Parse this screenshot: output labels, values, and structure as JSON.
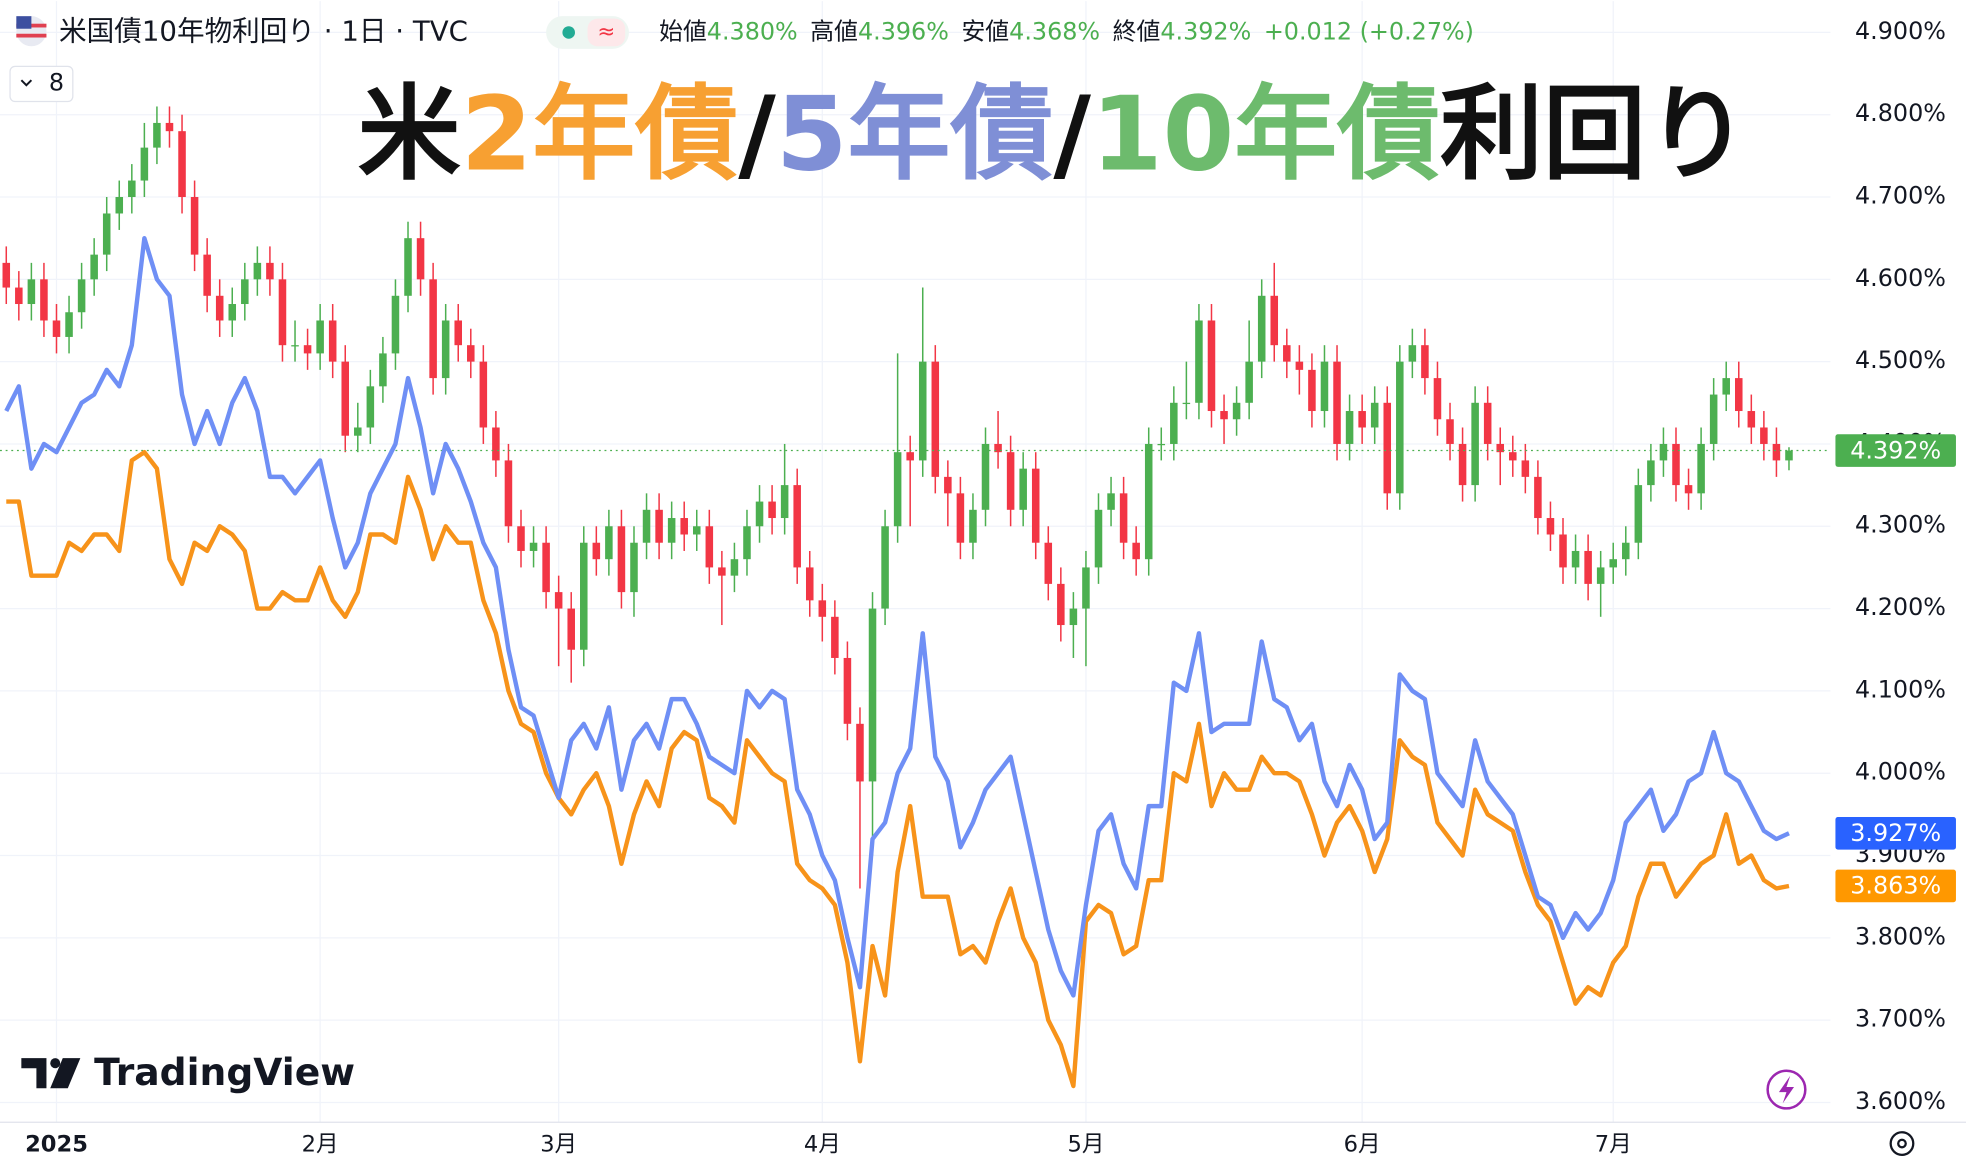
{
  "chart_data": {
    "type": "candlestick",
    "header": {
      "symbol": "米国債10年物利回り · 1日 · TVC",
      "indicator": "8",
      "ohlc": [
        {
          "label": "始値",
          "value": "4.380%"
        },
        {
          "label": "高値",
          "value": "4.396%"
        },
        {
          "label": "安値",
          "value": "4.368%"
        },
        {
          "label": "終値",
          "value": "4.392%"
        }
      ],
      "change": "+0.012 (+0.27%)",
      "brand": "TradingView"
    },
    "title_parts": [
      {
        "text": "米",
        "color": "#111111"
      },
      {
        "text": "2年債",
        "color": "#f7a032"
      },
      {
        "text": "/",
        "color": "#111111"
      },
      {
        "text": "5年債",
        "color": "#7f8fd6"
      },
      {
        "text": "/",
        "color": "#111111"
      },
      {
        "text": "10年債",
        "color": "#6dbb6d"
      },
      {
        "text": "利回り",
        "color": "#111111"
      }
    ],
    "categories": [
      null,
      null,
      null,
      null,
      null,
      null,
      null,
      null,
      null,
      null,
      null,
      null,
      null,
      null,
      null,
      null,
      null,
      null,
      null,
      null,
      null,
      null,
      null,
      null,
      null,
      null,
      null,
      null,
      null,
      null,
      null,
      null,
      null,
      null,
      null,
      null,
      null,
      null,
      null,
      null,
      null,
      null,
      null,
      null,
      null,
      null,
      null,
      null,
      null,
      null,
      null,
      null,
      null,
      null,
      null,
      null,
      null,
      null,
      null,
      null,
      null,
      null,
      null,
      null,
      null,
      null,
      null,
      null,
      null,
      null,
      null,
      null,
      null,
      null,
      null,
      null,
      null,
      null,
      null,
      null,
      null,
      null,
      null,
      null,
      null,
      null,
      null,
      null,
      null,
      null,
      null,
      null,
      null,
      null,
      null,
      null,
      null,
      null,
      null,
      null,
      null,
      null,
      null,
      null,
      null,
      null,
      null,
      null,
      null,
      null,
      null,
      null,
      null,
      null,
      null,
      null,
      null,
      null,
      null,
      null,
      null,
      null,
      null,
      null,
      null,
      null,
      null,
      null,
      null,
      null,
      null,
      null,
      null,
      null,
      null,
      null,
      null,
      null,
      null,
      null,
      null,
      null,
      null
    ],
    "xticks": [
      {
        "value": 4,
        "label": "2025"
      },
      {
        "value": 25,
        "label": "2月"
      },
      {
        "value": 44,
        "label": "3月"
      },
      {
        "value": 65,
        "label": "4月"
      },
      {
        "value": 86,
        "label": "5月"
      },
      {
        "value": 108,
        "label": "6月"
      },
      {
        "value": 128,
        "label": "7月"
      }
    ],
    "ylim": [
      3.576,
      4.938
    ],
    "yticks": [
      {
        "value": 4.9,
        "label": "4.900%"
      },
      {
        "value": 4.8,
        "label": "4.800%"
      },
      {
        "value": 4.7,
        "label": "4.700%"
      },
      {
        "value": 4.6,
        "label": "4.600%"
      },
      {
        "value": 4.5,
        "label": "4.500%"
      },
      {
        "value": 4.4,
        "label": "4.400%"
      },
      {
        "value": 4.3,
        "label": "4.300%"
      },
      {
        "value": 4.2,
        "label": "4.200%"
      },
      {
        "value": 4.1,
        "label": "4.100%"
      },
      {
        "value": 4.0,
        "label": "4.000%"
      },
      {
        "value": 3.9,
        "label": "3.900%"
      },
      {
        "value": 3.8,
        "label": "3.800%"
      },
      {
        "value": 3.7,
        "label": "3.700%"
      },
      {
        "value": 3.6,
        "label": "3.600%"
      }
    ],
    "grid": true,
    "candles": {
      "up_color": "#4caf50",
      "down_color": "#f23645",
      "last_label": "4.392%",
      "open": [
        4.62,
        4.59,
        4.57,
        4.6,
        4.55,
        4.53,
        4.56,
        4.6,
        4.63,
        4.68,
        4.7,
        4.72,
        4.76,
        4.79,
        4.78,
        4.7,
        4.63,
        4.58,
        4.55,
        4.57,
        4.6,
        4.62,
        4.6,
        4.52,
        4.52,
        4.51,
        4.55,
        4.5,
        4.41,
        4.42,
        4.47,
        4.51,
        4.58,
        4.65,
        4.6,
        4.48,
        4.55,
        4.52,
        4.5,
        4.42,
        4.38,
        4.3,
        4.27,
        4.28,
        4.22,
        4.2,
        4.15,
        4.28,
        4.26,
        4.3,
        4.22,
        4.28,
        4.32,
        4.28,
        4.31,
        4.29,
        4.3,
        4.25,
        4.24,
        4.26,
        4.3,
        4.33,
        4.31,
        4.35,
        4.25,
        4.21,
        4.19,
        4.14,
        4.06,
        3.99,
        4.2,
        4.3,
        4.39,
        4.38,
        4.5,
        4.36,
        4.34,
        4.28,
        4.32,
        4.4,
        4.39,
        4.32,
        4.37,
        4.28,
        4.23,
        4.18,
        4.2,
        4.25,
        4.32,
        4.34,
        4.28,
        4.26,
        4.4,
        4.4,
        4.45,
        4.45,
        4.55,
        4.44,
        4.43,
        4.45,
        4.5,
        4.58,
        4.52,
        4.5,
        4.49,
        4.44,
        4.5,
        4.4,
        4.44,
        4.42,
        4.45,
        4.34,
        4.5,
        4.52,
        4.48,
        4.43,
        4.4,
        4.35,
        4.45,
        4.4,
        4.39,
        4.38,
        4.36,
        4.31,
        4.29,
        4.25,
        4.27,
        4.23,
        4.25,
        4.26,
        4.28,
        4.35,
        4.38,
        4.4,
        4.35,
        4.34,
        4.4,
        4.46,
        4.48,
        4.44,
        4.42,
        4.4,
        4.38
      ],
      "high": [
        4.64,
        4.61,
        4.62,
        4.62,
        4.57,
        4.58,
        4.62,
        4.65,
        4.7,
        4.72,
        4.74,
        4.79,
        4.81,
        4.81,
        4.8,
        4.72,
        4.65,
        4.6,
        4.59,
        4.62,
        4.64,
        4.64,
        4.62,
        4.55,
        4.54,
        4.57,
        4.57,
        4.52,
        4.45,
        4.49,
        4.53,
        4.6,
        4.67,
        4.67,
        4.62,
        4.57,
        4.57,
        4.54,
        4.52,
        4.44,
        4.4,
        4.32,
        4.3,
        4.3,
        4.24,
        4.22,
        4.3,
        4.3,
        4.32,
        4.32,
        4.3,
        4.34,
        4.34,
        4.33,
        4.33,
        4.32,
        4.32,
        4.27,
        4.28,
        4.32,
        4.35,
        4.35,
        4.4,
        4.37,
        4.27,
        4.23,
        4.21,
        4.16,
        4.08,
        4.22,
        4.32,
        4.51,
        4.41,
        4.59,
        4.52,
        4.38,
        4.36,
        4.34,
        4.42,
        4.44,
        4.41,
        4.39,
        4.39,
        4.3,
        4.25,
        4.22,
        4.27,
        4.34,
        4.36,
        4.36,
        4.3,
        4.42,
        4.42,
        4.47,
        4.5,
        4.57,
        4.57,
        4.46,
        4.47,
        4.55,
        4.6,
        4.62,
        4.54,
        4.52,
        4.51,
        4.52,
        4.52,
        4.46,
        4.46,
        4.47,
        4.47,
        4.52,
        4.54,
        4.54,
        4.5,
        4.45,
        4.42,
        4.47,
        4.47,
        4.42,
        4.41,
        4.4,
        4.38,
        4.33,
        4.31,
        4.29,
        4.29,
        4.27,
        4.28,
        4.3,
        4.37,
        4.4,
        4.42,
        4.42,
        4.37,
        4.42,
        4.48,
        4.5,
        4.5,
        4.46,
        4.44,
        4.42,
        4.396
      ],
      "low": [
        4.57,
        4.55,
        4.55,
        4.53,
        4.51,
        4.51,
        4.54,
        4.58,
        4.61,
        4.66,
        4.68,
        4.7,
        4.74,
        4.76,
        4.68,
        4.61,
        4.56,
        4.53,
        4.53,
        4.55,
        4.58,
        4.58,
        4.5,
        4.5,
        4.49,
        4.49,
        4.48,
        4.39,
        4.39,
        4.4,
        4.45,
        4.49,
        4.56,
        4.58,
        4.46,
        4.46,
        4.5,
        4.48,
        4.4,
        4.36,
        4.28,
        4.25,
        4.25,
        4.2,
        4.13,
        4.11,
        4.13,
        4.24,
        4.24,
        4.2,
        4.19,
        4.26,
        4.26,
        4.26,
        4.27,
        4.27,
        4.23,
        4.18,
        4.22,
        4.24,
        4.28,
        4.29,
        4.29,
        4.23,
        4.19,
        4.16,
        4.12,
        4.04,
        3.86,
        3.9,
        4.18,
        4.28,
        4.3,
        4.36,
        4.34,
        4.3,
        4.26,
        4.26,
        4.3,
        4.37,
        4.3,
        4.3,
        4.26,
        4.21,
        4.16,
        4.14,
        4.13,
        4.23,
        4.3,
        4.26,
        4.24,
        4.24,
        4.38,
        4.38,
        4.43,
        4.43,
        4.42,
        4.4,
        4.41,
        4.43,
        4.48,
        4.5,
        4.48,
        4.46,
        4.42,
        4.42,
        4.38,
        4.38,
        4.4,
        4.4,
        4.32,
        4.32,
        4.48,
        4.46,
        4.41,
        4.38,
        4.33,
        4.33,
        4.38,
        4.35,
        4.36,
        4.34,
        4.29,
        4.27,
        4.23,
        4.23,
        4.21,
        4.19,
        4.23,
        4.24,
        4.26,
        4.33,
        4.36,
        4.33,
        4.32,
        4.32,
        4.38,
        4.44,
        4.42,
        4.4,
        4.38,
        4.36,
        4.368
      ],
      "close": [
        4.59,
        4.57,
        4.6,
        4.55,
        4.53,
        4.56,
        4.6,
        4.63,
        4.68,
        4.7,
        4.72,
        4.76,
        4.79,
        4.78,
        4.7,
        4.63,
        4.58,
        4.55,
        4.57,
        4.6,
        4.62,
        4.6,
        4.52,
        4.52,
        4.51,
        4.55,
        4.5,
        4.41,
        4.42,
        4.47,
        4.51,
        4.58,
        4.65,
        4.6,
        4.48,
        4.55,
        4.52,
        4.5,
        4.42,
        4.38,
        4.3,
        4.27,
        4.28,
        4.22,
        4.2,
        4.15,
        4.28,
        4.26,
        4.3,
        4.22,
        4.28,
        4.32,
        4.28,
        4.31,
        4.29,
        4.3,
        4.25,
        4.24,
        4.26,
        4.3,
        4.33,
        4.31,
        4.35,
        4.25,
        4.21,
        4.19,
        4.14,
        4.06,
        3.99,
        4.2,
        4.3,
        4.39,
        4.38,
        4.5,
        4.36,
        4.34,
        4.28,
        4.32,
        4.4,
        4.39,
        4.32,
        4.37,
        4.28,
        4.23,
        4.18,
        4.2,
        4.25,
        4.32,
        4.34,
        4.28,
        4.26,
        4.4,
        4.4,
        4.45,
        4.45,
        4.55,
        4.44,
        4.43,
        4.45,
        4.5,
        4.58,
        4.52,
        4.5,
        4.49,
        4.44,
        4.5,
        4.4,
        4.44,
        4.42,
        4.45,
        4.34,
        4.5,
        4.52,
        4.48,
        4.43,
        4.4,
        4.35,
        4.45,
        4.4,
        4.39,
        4.38,
        4.36,
        4.31,
        4.29,
        4.25,
        4.27,
        4.23,
        4.25,
        4.26,
        4.28,
        4.35,
        4.38,
        4.4,
        4.35,
        4.34,
        4.4,
        4.46,
        4.48,
        4.44,
        4.42,
        4.4,
        4.38,
        4.392
      ]
    },
    "series": [
      {
        "type": "line",
        "color": "#f7931a",
        "label_color": "#ff9800",
        "last_label": "3.863%",
        "values": [
          4.33,
          4.33,
          4.24,
          4.24,
          4.24,
          4.28,
          4.27,
          4.29,
          4.29,
          4.27,
          4.38,
          4.39,
          4.37,
          4.26,
          4.23,
          4.28,
          4.27,
          4.3,
          4.29,
          4.27,
          4.2,
          4.2,
          4.22,
          4.21,
          4.21,
          4.25,
          4.21,
          4.19,
          4.22,
          4.29,
          4.29,
          4.28,
          4.36,
          4.32,
          4.26,
          4.3,
          4.28,
          4.28,
          4.21,
          4.17,
          4.1,
          4.06,
          4.05,
          4.0,
          3.97,
          3.95,
          3.98,
          4.0,
          3.96,
          3.89,
          3.95,
          3.99,
          3.96,
          4.03,
          4.05,
          4.04,
          3.97,
          3.96,
          3.94,
          4.04,
          4.02,
          4.0,
          3.99,
          3.89,
          3.87,
          3.86,
          3.84,
          3.77,
          3.65,
          3.79,
          3.73,
          3.88,
          3.96,
          3.85,
          3.85,
          3.85,
          3.78,
          3.79,
          3.77,
          3.82,
          3.86,
          3.8,
          3.77,
          3.7,
          3.67,
          3.62,
          3.82,
          3.84,
          3.83,
          3.78,
          3.79,
          3.87,
          3.87,
          4.0,
          3.99,
          4.06,
          3.96,
          4.0,
          3.98,
          3.98,
          4.02,
          4.0,
          4.0,
          3.99,
          3.95,
          3.9,
          3.94,
          3.96,
          3.93,
          3.88,
          3.92,
          4.04,
          4.02,
          4.01,
          3.94,
          3.92,
          3.9,
          3.98,
          3.95,
          3.94,
          3.93,
          3.88,
          3.84,
          3.82,
          3.77,
          3.72,
          3.74,
          3.73,
          3.77,
          3.79,
          3.85,
          3.89,
          3.89,
          3.85,
          3.87,
          3.89,
          3.9,
          3.95,
          3.89,
          3.9,
          3.87,
          3.86,
          3.863
        ]
      },
      {
        "type": "line",
        "color": "#6f8ff5",
        "label_color": "#2962ff",
        "last_label": "3.927%",
        "values": [
          4.44,
          4.47,
          4.37,
          4.4,
          4.39,
          4.42,
          4.45,
          4.46,
          4.49,
          4.47,
          4.52,
          4.65,
          4.6,
          4.58,
          4.46,
          4.4,
          4.44,
          4.4,
          4.45,
          4.48,
          4.44,
          4.36,
          4.36,
          4.34,
          4.36,
          4.38,
          4.31,
          4.25,
          4.28,
          4.34,
          4.37,
          4.4,
          4.48,
          4.42,
          4.34,
          4.4,
          4.37,
          4.33,
          4.28,
          4.25,
          4.15,
          4.08,
          4.07,
          4.02,
          3.97,
          4.04,
          4.06,
          4.03,
          4.08,
          3.98,
          4.04,
          4.06,
          4.03,
          4.09,
          4.09,
          4.06,
          4.02,
          4.01,
          4.0,
          4.1,
          4.08,
          4.1,
          4.09,
          3.98,
          3.95,
          3.9,
          3.87,
          3.8,
          3.74,
          3.92,
          3.94,
          4.0,
          4.03,
          4.17,
          4.02,
          3.99,
          3.91,
          3.94,
          3.98,
          4.0,
          4.02,
          3.95,
          3.88,
          3.81,
          3.76,
          3.73,
          3.84,
          3.93,
          3.95,
          3.89,
          3.86,
          3.96,
          3.96,
          4.11,
          4.1,
          4.17,
          4.05,
          4.06,
          4.06,
          4.06,
          4.16,
          4.09,
          4.08,
          4.04,
          4.06,
          3.99,
          3.96,
          4.01,
          3.98,
          3.92,
          3.94,
          4.12,
          4.1,
          4.09,
          4.0,
          3.98,
          3.96,
          4.04,
          3.99,
          3.97,
          3.95,
          3.9,
          3.85,
          3.84,
          3.8,
          3.83,
          3.81,
          3.83,
          3.87,
          3.94,
          3.96,
          3.98,
          3.93,
          3.95,
          3.99,
          4.0,
          4.05,
          4.0,
          3.99,
          3.96,
          3.93,
          3.92,
          3.927
        ]
      }
    ]
  }
}
